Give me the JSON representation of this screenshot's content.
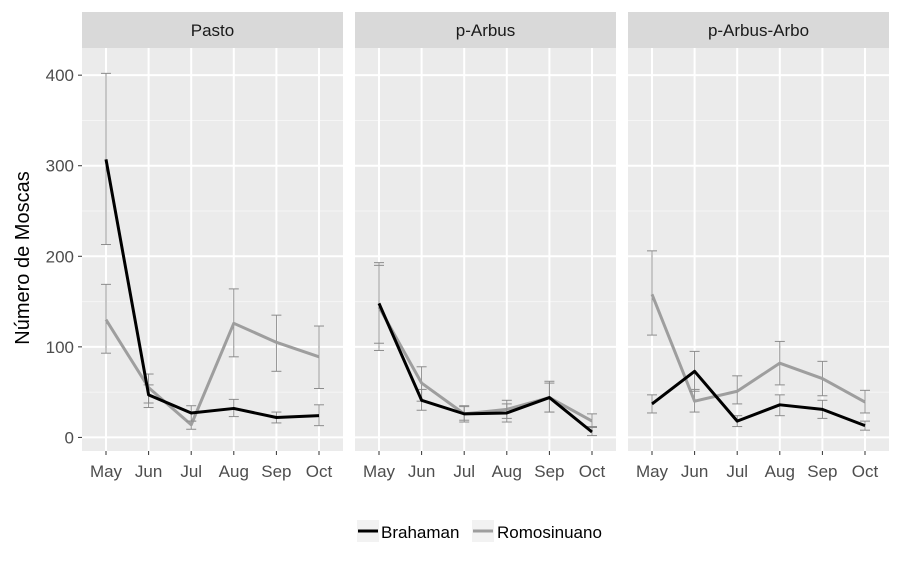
{
  "chart_data": {
    "type": "line",
    "facets": [
      "Pasto",
      "p-Arbus",
      "p-Arbus-Arbo"
    ],
    "categories": [
      "May",
      "Jun",
      "Jul",
      "Aug",
      "Sep",
      "Oct"
    ],
    "ylabel": "Número de Moscas",
    "xlabel": "",
    "ylim": [
      -15,
      430
    ],
    "yticks": [
      0,
      100,
      200,
      300,
      400
    ],
    "grid": true,
    "legend_position": "bottom",
    "colors": {
      "Brahaman": "#000000",
      "Romosinuano": "#9e9e9e"
    },
    "series": [
      {
        "name": "Brahaman",
        "panels": [
          {
            "values": [
              307,
              47,
              27,
              32,
              22,
              24
            ],
            "lower": [
              213,
              38,
              18,
              23,
              16,
              13
            ],
            "upper": [
              402,
              58,
              35,
              42,
              28,
              36
            ]
          },
          {
            "values": [
              148,
              41,
              26,
              27,
              44,
              6
            ],
            "lower": [
              104,
              30,
              17,
              17,
              28,
              2
            ],
            "upper": [
              193,
              53,
              35,
              37,
              60,
              12
            ]
          },
          {
            "values": [
              37,
              73,
              18,
              36,
              31,
              13
            ],
            "lower": [
              27,
              51,
              12,
              24,
              21,
              8
            ],
            "upper": [
              47,
              95,
              24,
              47,
              41,
              18
            ]
          }
        ]
      },
      {
        "name": "Romosinuano",
        "panels": [
          {
            "values": [
              130,
              55,
              14,
              126,
              105,
              89
            ],
            "lower": [
              93,
              33,
              9,
              89,
              73,
              54
            ],
            "upper": [
              169,
              70,
              18,
              164,
              135,
              123
            ]
          },
          {
            "values": [
              144,
              60,
              26,
              31,
              44,
              18
            ],
            "lower": [
              96,
              40,
              19,
              21,
              28,
              11
            ],
            "upper": [
              190,
              78,
              34,
              41,
              62,
              26
            ]
          },
          {
            "values": [
              158,
              40,
              51,
              82,
              65,
              39
            ],
            "lower": [
              113,
              28,
              37,
              58,
              46,
              27
            ],
            "upper": [
              206,
              53,
              68,
              106,
              84,
              52
            ]
          }
        ]
      }
    ]
  }
}
